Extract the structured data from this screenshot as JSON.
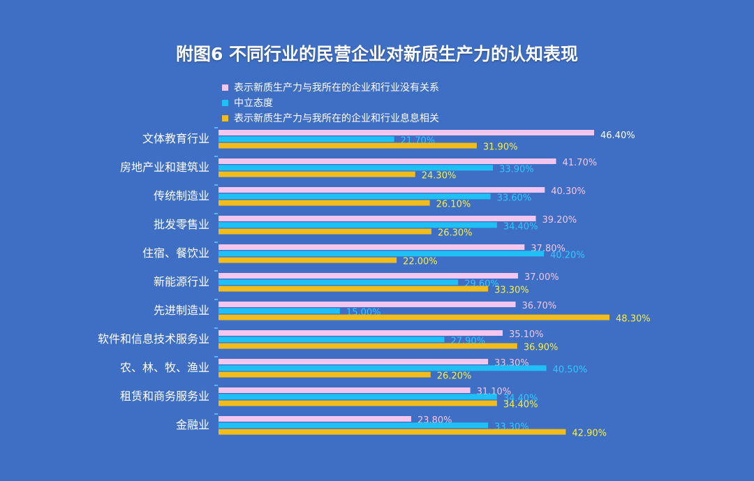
{
  "title": "附图6  不同行业的民营企业对新质生产力的认知表现",
  "legend": [
    {
      "label": "表示新质生产力与我所在的企业和行业没有关系",
      "color": "#f3c6f0"
    },
    {
      "label": "中立态度",
      "color": "#1fc0f5"
    },
    {
      "label": "表示新质生产力与我所在的企业和行业息息相关",
      "color": "#f2bc1a"
    }
  ],
  "colors": {
    "background": "#3f6fc4",
    "axis": "#5ad4f7",
    "label_series_1": "#f3c6f0",
    "label_series_2": "#2ec9ff",
    "label_series_3": "#f7f04a"
  },
  "chart_data": {
    "type": "bar",
    "orientation": "horizontal",
    "title": "附图6  不同行业的民营企业对新质生产力的认知表现",
    "categories": [
      "文体教育行业",
      "房地产业和建筑业",
      "传统制造业",
      "批发零售业",
      "住宿、餐饮业",
      "新能源行业",
      "先进制造业",
      "软件和信息技术服务业",
      "农、林、牧、渔业",
      "租赁和商务服务业",
      "金融业"
    ],
    "series": [
      {
        "name": "表示新质生产力与我所在的企业和行业没有关系",
        "values": [
          46.4,
          41.7,
          40.3,
          39.2,
          37.8,
          37.0,
          36.7,
          35.1,
          33.3,
          31.1,
          23.8
        ]
      },
      {
        "name": "中立态度",
        "values": [
          21.7,
          33.9,
          33.6,
          34.4,
          40.2,
          29.6,
          15.0,
          27.9,
          40.5,
          34.4,
          33.3
        ]
      },
      {
        "name": "表示新质生产力与我所在的企业和行业息息相关",
        "values": [
          31.9,
          24.3,
          26.1,
          26.3,
          22.0,
          33.3,
          48.3,
          36.9,
          26.2,
          34.4,
          42.9
        ]
      }
    ],
    "labels": [
      [
        "46.40%",
        "41.70%",
        "40.30%",
        "39.20%",
        "37.80%",
        "37.00%",
        "36.70%",
        "35.10%",
        "33.30%",
        "31.10%",
        "23.80%"
      ],
      [
        "21.70%",
        "33.90%",
        "33.60%",
        "34.40%",
        "40.20%",
        "29.60%",
        "15.00%",
        "27.90%",
        "40.50%",
        "34.40%",
        "33.30%"
      ],
      [
        "31.90%",
        "24.30%",
        "26.10%",
        "26.30%",
        "22.00%",
        "33.30%",
        "48.30%",
        "36.90%",
        "26.20%",
        "34.40%",
        "42.90%"
      ]
    ],
    "xlim": [
      0,
      50
    ],
    "unit": "%",
    "grid": false,
    "legend_position": "top-left"
  }
}
